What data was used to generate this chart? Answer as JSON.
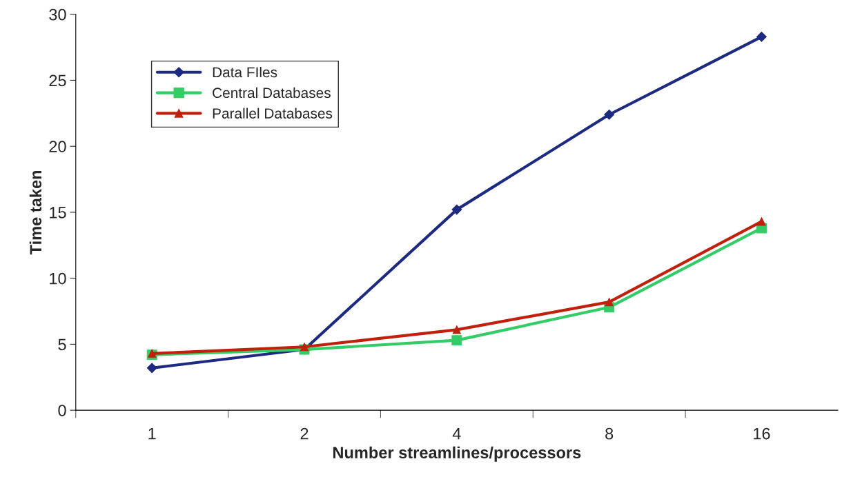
{
  "chart_data": {
    "type": "line",
    "xlabel": "Number streamlines/processors",
    "ylabel": "Time taken",
    "categories": [
      "1",
      "2",
      "4",
      "8",
      "16"
    ],
    "series": [
      {
        "name": "Data FIles",
        "color": "#1c2a80",
        "values": [
          3.2,
          4.6,
          15.2,
          22.4,
          28.3
        ],
        "marker": "diamond"
      },
      {
        "name": "Central Databases",
        "color": "#33cc66",
        "values": [
          4.2,
          4.6,
          5.3,
          7.8,
          13.8
        ],
        "marker": "square"
      },
      {
        "name": "Parallel Databases",
        "color": "#c0200c",
        "values": [
          4.3,
          4.8,
          6.1,
          8.2,
          14.3
        ],
        "marker": "triangle"
      }
    ],
    "ylim": [
      0,
      30
    ],
    "yticks": [
      0,
      5,
      10,
      15,
      20,
      25,
      30
    ],
    "grid": false,
    "legend": "top left",
    "line_style": "solid"
  }
}
